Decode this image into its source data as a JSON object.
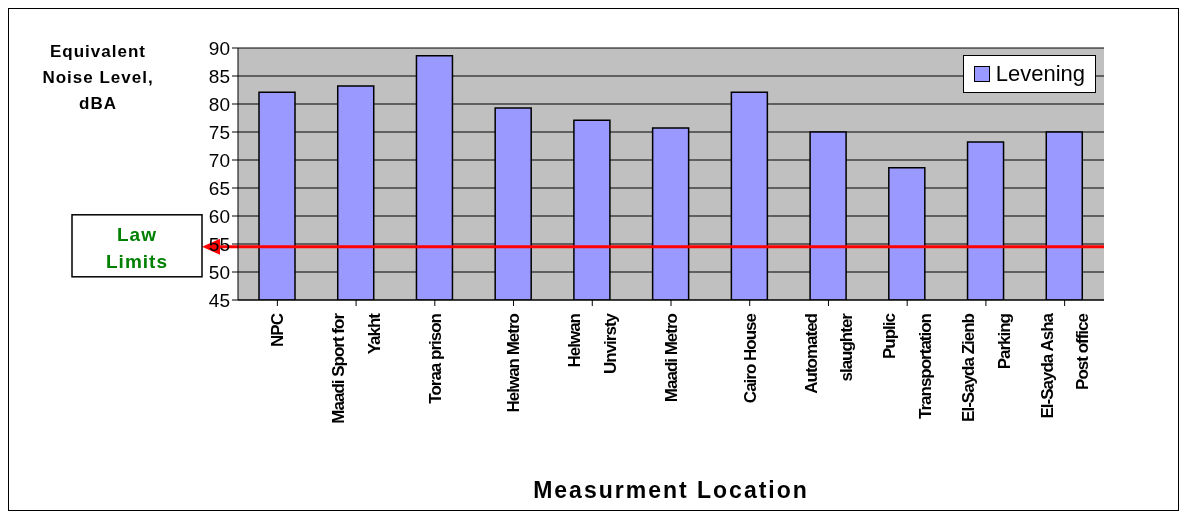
{
  "chart_data": {
    "type": "bar",
    "xlabel": "Measurment Location",
    "ylabel": "Equivalent Noise Level, dBA",
    "categories": [
      "NPC",
      "Maadi Sport for\nYakht",
      "Toraa prison",
      "Helwan Metro",
      "Helwan\nUnvirsty",
      "Maadi Metro",
      "Cairo House",
      "Automated\nslaughter",
      "Puplic\nTransportation",
      "El-Sayda Zienb\nParking",
      "El-Sayda Asha\nPost office"
    ],
    "series": [
      {
        "name": "Levening",
        "color": "#9999ff",
        "values": [
          82.1,
          83.2,
          88.6,
          79.3,
          77.1,
          75.7,
          82.1,
          75,
          68.6,
          73.2,
          75
        ]
      }
    ],
    "ylim": [
      45,
      90
    ],
    "yticks": [
      45,
      50,
      55,
      60,
      65,
      70,
      75,
      80,
      85,
      90
    ],
    "grid": "y",
    "legend": "top right",
    "ref_lines": [
      {
        "axis": "y",
        "value": 54.5,
        "label": "Law Limits",
        "color": "#ff0000"
      }
    ]
  }
}
